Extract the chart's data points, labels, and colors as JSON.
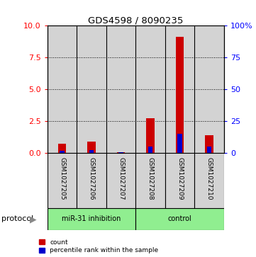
{
  "title": "GDS4598 / 8090235",
  "samples": [
    "GSM1027205",
    "GSM1027206",
    "GSM1027207",
    "GSM1027208",
    "GSM1027209",
    "GSM1027210"
  ],
  "count_values": [
    0.7,
    0.9,
    0.05,
    2.7,
    9.1,
    1.4
  ],
  "percentile_values": [
    1.5,
    2.0,
    0.5,
    5.0,
    15.0,
    5.0
  ],
  "bar_bg_color": "#d3d3d3",
  "red_color": "#cc0000",
  "blue_color": "#0000cc",
  "green_color": "#90ee90",
  "left_ylim": [
    0,
    10
  ],
  "right_ylim": [
    0,
    100
  ],
  "left_yticks": [
    0,
    2.5,
    5,
    7.5,
    10
  ],
  "right_yticks": [
    0,
    25,
    50,
    75,
    100
  ],
  "right_yticklabels": [
    "0",
    "25",
    "50",
    "75",
    "100%"
  ],
  "dotted_lines": [
    2.5,
    5.0,
    7.5
  ],
  "group1_label": "miR-31 inhibition",
  "group2_label": "control",
  "protocol_label": "protocol",
  "legend1": "count",
  "legend2": "percentile rank within the sample"
}
